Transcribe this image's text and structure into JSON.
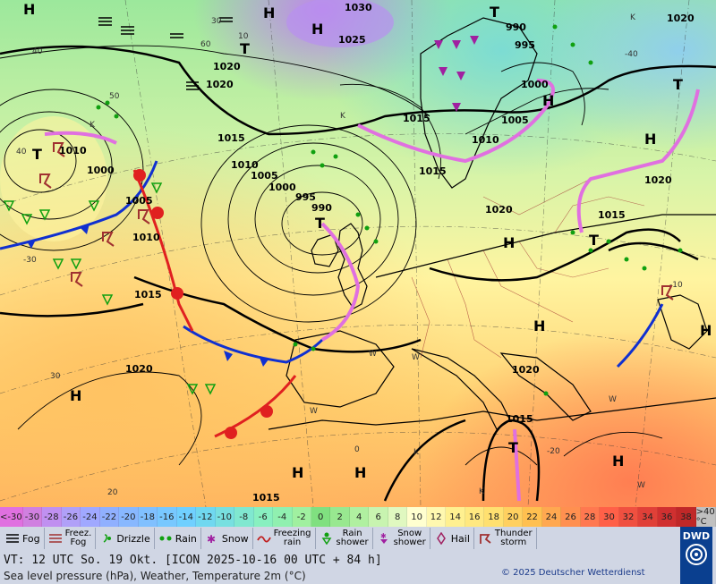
{
  "map": {
    "isobar_labels": [
      "1030",
      "1020",
      "990",
      "995",
      "1025",
      "1020",
      "1020",
      "1000",
      "1005",
      "1010",
      "1015",
      "1015",
      "1010",
      "1000",
      "1005",
      "995",
      "990",
      "1010",
      "1005",
      "1015",
      "1000",
      "1015",
      "1020",
      "1020",
      "1015",
      "1020",
      "1015",
      "1020",
      "1015",
      "1010"
    ],
    "pressure_centers": [
      "H",
      "H",
      "T",
      "T",
      "T",
      "T",
      "H",
      "H",
      "H",
      "H",
      "H",
      "H",
      "H",
      "H",
      "T",
      "T",
      "H",
      "T",
      "H"
    ],
    "temperature_labels": [
      "40",
      "30",
      "20",
      "10",
      "0",
      "-10",
      "-20",
      "-30",
      "-40",
      "60",
      "50",
      "40",
      "30",
      "20",
      "10",
      "0"
    ],
    "air_mass_labels": [
      "K",
      "K",
      "K",
      "W",
      "W",
      "W",
      "W",
      "K",
      "K",
      "W"
    ]
  },
  "scale": {
    "labels": [
      "<-30",
      "-30",
      "-28",
      "-26",
      "-24",
      "-22",
      "-20",
      "-18",
      "-16",
      "-14",
      "-12",
      "-10",
      "-8",
      "-6",
      "-4",
      "-2",
      "0",
      "2",
      "4",
      "6",
      "8",
      "10",
      "12",
      "14",
      "16",
      "18",
      "20",
      "22",
      "24",
      "26",
      "28",
      "30",
      "32",
      "34",
      "36",
      "38",
      ">40 °C"
    ],
    "colors": [
      "#e070e0",
      "#d080e0",
      "#c090f0",
      "#b0a0f8",
      "#a0a8ff",
      "#90b0ff",
      "#88b8ff",
      "#80c0ff",
      "#78c8ff",
      "#70d0ff",
      "#70d8f0",
      "#78e0e0",
      "#80e8d0",
      "#88f0c0",
      "#90f0b0",
      "#a0f0a0",
      "#80e080",
      "#98e890",
      "#b0f0a0",
      "#c8f4b0",
      "#e0f8c0",
      "#ffffd0",
      "#fff8b0",
      "#fff090",
      "#ffe880",
      "#ffe070",
      "#ffd060",
      "#ffc050",
      "#ffa850",
      "#ff9050",
      "#ff7850",
      "#ff6048",
      "#f05040",
      "#e04038",
      "#d03030",
      "#c02828",
      "#c0c0c0"
    ]
  },
  "legend": {
    "items": [
      {
        "icon": "fog-icon",
        "label": "Fog"
      },
      {
        "icon": "freezing-fog-icon",
        "label": "Freez.\nFog"
      },
      {
        "icon": "drizzle-icon",
        "label": "Drizzle"
      },
      {
        "icon": "rain-icon",
        "label": "Rain"
      },
      {
        "icon": "snow-icon",
        "label": "Snow"
      },
      {
        "icon": "freezing-rain-icon",
        "label": "Freezing\nrain"
      },
      {
        "icon": "rain-shower-icon",
        "label": "Rain\nshower"
      },
      {
        "icon": "snow-shower-icon",
        "label": "Snow\nshower"
      },
      {
        "icon": "hail-icon",
        "label": "Hail"
      },
      {
        "icon": "thunderstorm-icon",
        "label": "Thunder\nstorm"
      }
    ],
    "valid_time": "VT: 12 UTC So.  19 Okt. [ICON 2025-10-16  00 UTC + 84 h]",
    "description": "Sea level pressure (hPa), Weather, Temperature 2m (°C)",
    "copyright": "© 2025 Deutscher Wetterdienst",
    "logo_text": "DWD"
  }
}
